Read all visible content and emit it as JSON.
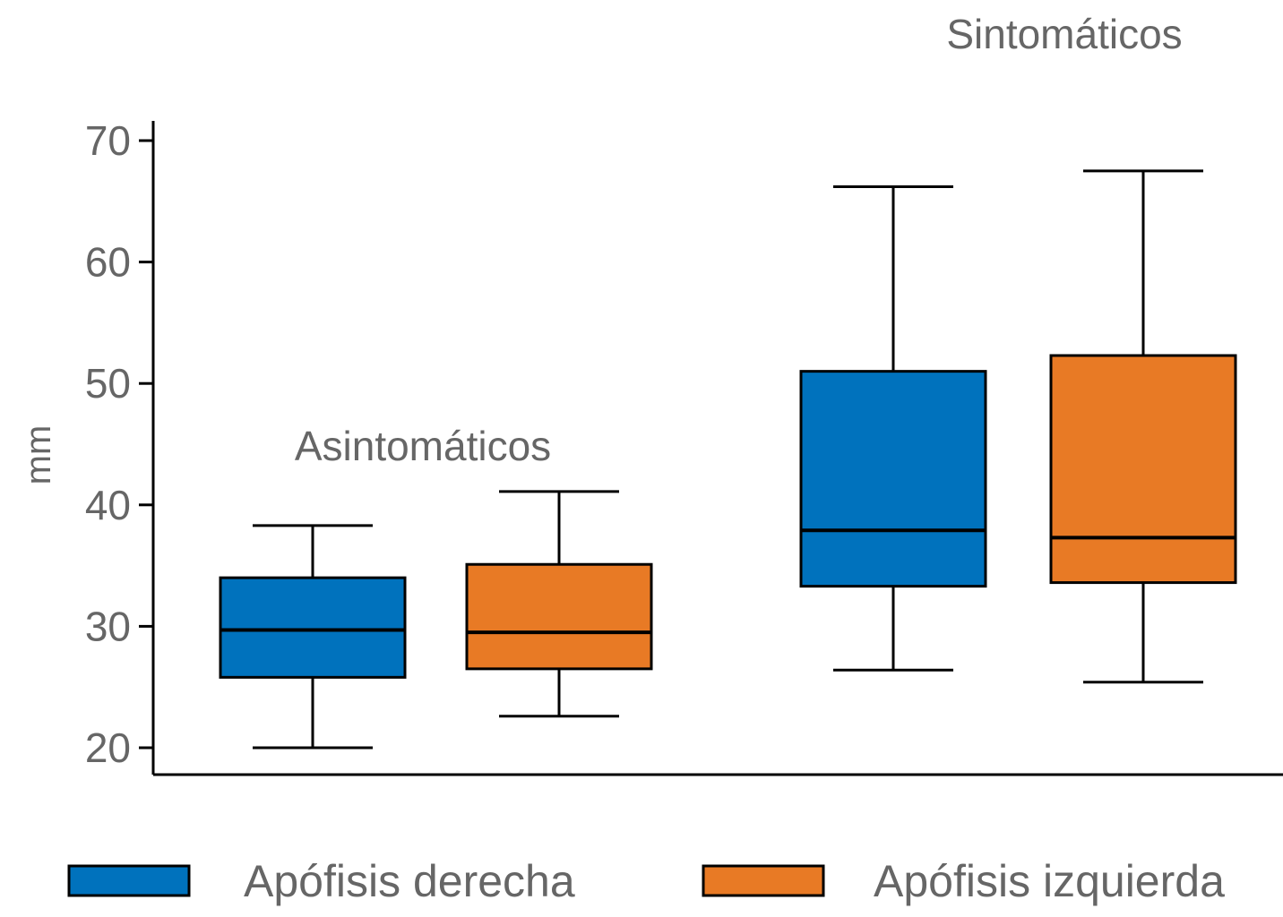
{
  "chart_data": {
    "type": "box",
    "title": "",
    "xlabel": "",
    "ylabel": "mm",
    "ylim": [
      17.8,
      71.6
    ],
    "yticks": [
      20,
      30,
      40,
      50,
      60,
      70
    ],
    "ytick_labels": [
      "20",
      "30",
      "40",
      "50",
      "60",
      "70"
    ],
    "grid": false,
    "groups": [
      "Asintomáticos",
      "Sintomáticos"
    ],
    "series": [
      {
        "name": "Apófisis derecha",
        "color": "#0072BD",
        "boxes": [
          {
            "group": "Asintomáticos",
            "whisker_low": 20.0,
            "q1": 25.8,
            "median": 29.7,
            "q3": 34.0,
            "whisker_high": 38.3
          },
          {
            "group": "Sintomáticos",
            "whisker_low": 26.4,
            "q1": 33.3,
            "median": 37.9,
            "q3": 51.0,
            "whisker_high": 66.2
          }
        ]
      },
      {
        "name": "Apófisis izquierda",
        "color": "#E87A25",
        "boxes": [
          {
            "group": "Asintomáticos",
            "whisker_low": 22.6,
            "q1": 26.5,
            "median": 29.5,
            "q3": 35.1,
            "whisker_high": 41.1
          },
          {
            "group": "Sintomáticos",
            "whisker_low": 25.4,
            "q1": 33.6,
            "median": 37.3,
            "q3": 52.3,
            "whisker_high": 67.5
          }
        ]
      }
    ],
    "annotations": [
      {
        "text": "Asintomáticos",
        "near": "above Asintomáticos boxes"
      },
      {
        "text": "Sintomáticos",
        "near": "top-right above Sintomáticos boxes"
      }
    ],
    "legend": {
      "position": "bottom",
      "entries": [
        "Apófisis derecha",
        "Apófisis izquierda"
      ]
    }
  }
}
